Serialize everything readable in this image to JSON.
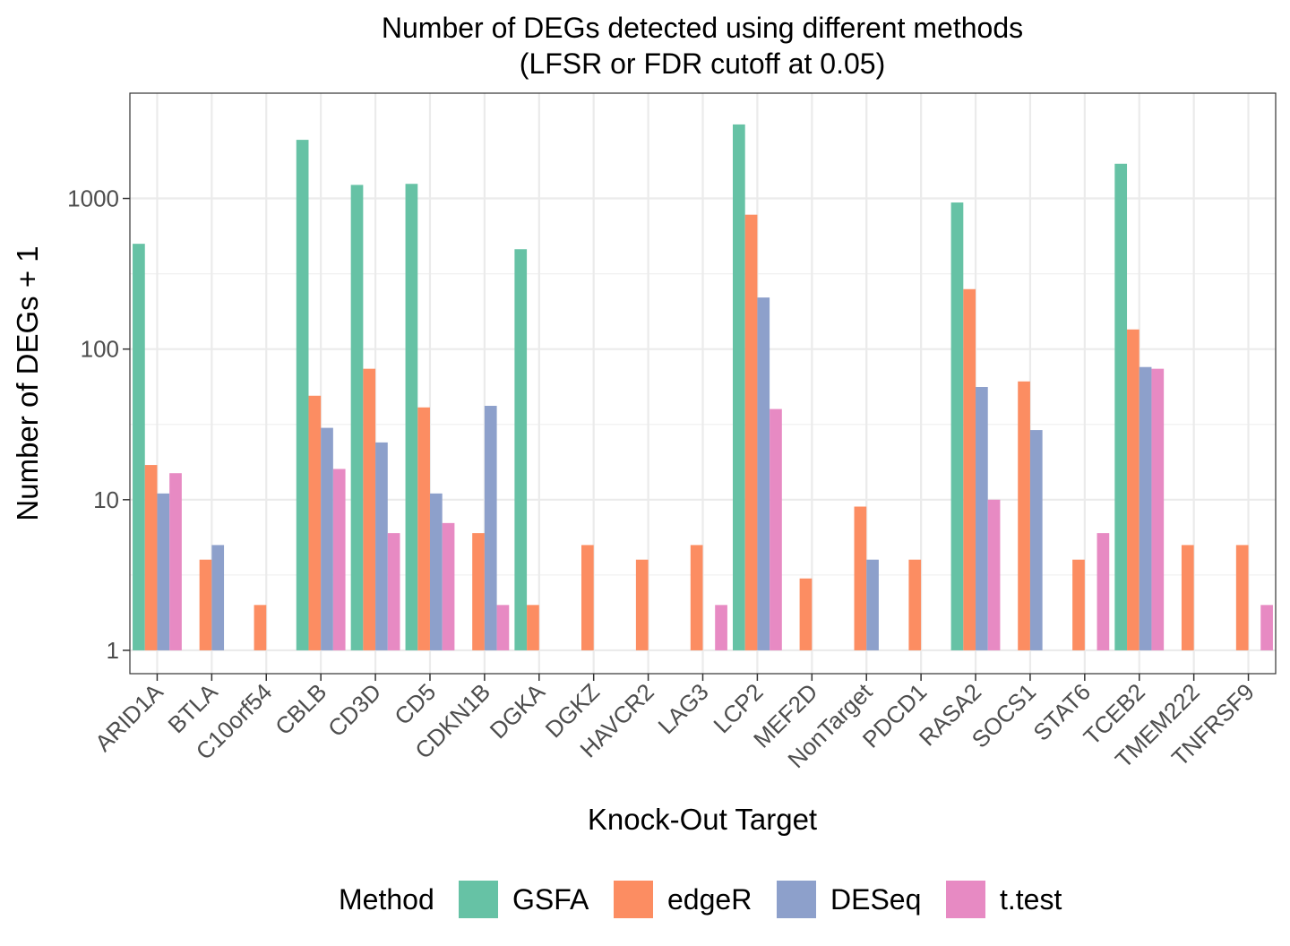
{
  "chart_data": {
    "type": "bar",
    "title": "Number of DEGs detected using different methods",
    "subtitle": "(LFSR or FDR cutoff at 0.05)",
    "xlabel": "Knock-Out Target",
    "ylabel": "Number of DEGs + 1",
    "y_scale": "log10",
    "ylim": [
      0.7,
      5000
    ],
    "y_ticks": [
      1,
      10,
      100,
      1000
    ],
    "y_tick_labels": [
      "1",
      "10",
      "100",
      "1000"
    ],
    "grid": true,
    "legend": {
      "title": "Method",
      "position": "bottom"
    },
    "categories": [
      "ARID1A",
      "BTLA",
      "C10orf54",
      "CBLB",
      "CD3D",
      "CD5",
      "CDKN1B",
      "DGKA",
      "DGKZ",
      "HAVCR2",
      "LAG3",
      "LCP2",
      "MEF2D",
      "NonTarget",
      "PDCD1",
      "RASA2",
      "SOCS1",
      "STAT6",
      "TCEB2",
      "TMEM222",
      "TNFRSF9"
    ],
    "series": [
      {
        "name": "GSFA",
        "color": "#66C2A5",
        "values": [
          500,
          1,
          1,
          2450,
          1230,
          1250,
          1,
          460,
          1,
          1,
          1,
          3100,
          1,
          1,
          1,
          940,
          1,
          1,
          1700,
          1,
          1
        ]
      },
      {
        "name": "edgeR",
        "color": "#FC8D62",
        "values": [
          17,
          4,
          2,
          49,
          74,
          41,
          6,
          2,
          5,
          4,
          5,
          780,
          3,
          9,
          4,
          250,
          61,
          4,
          135,
          5,
          5
        ]
      },
      {
        "name": "DESeq",
        "color": "#8DA0CB",
        "values": [
          11,
          5,
          1,
          30,
          24,
          11,
          42,
          1,
          1,
          1,
          1,
          220,
          1,
          4,
          1,
          56,
          29,
          1,
          76,
          1,
          1
        ]
      },
      {
        "name": "t.test",
        "color": "#E78AC3",
        "values": [
          15,
          1,
          1,
          16,
          6,
          7,
          2,
          1,
          1,
          1,
          2,
          40,
          1,
          1,
          1,
          10,
          1,
          6,
          74,
          1,
          2
        ]
      }
    ]
  }
}
